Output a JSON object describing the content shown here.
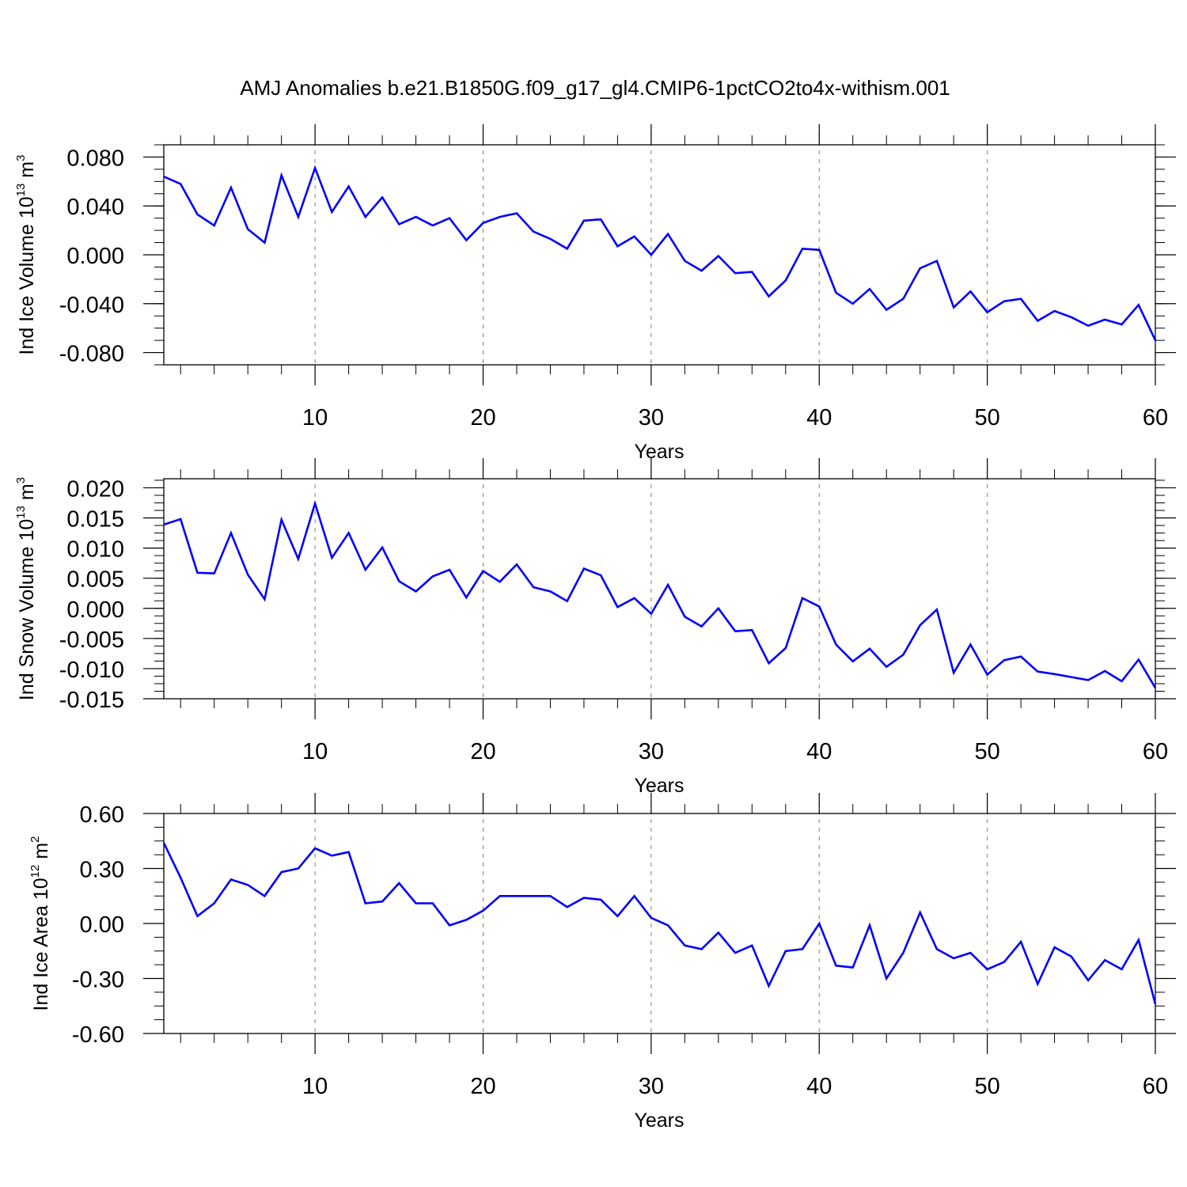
{
  "title": "AMJ Anomalies b.e21.B1850G.f09_g17_gl4.CMIP6-1pctCO2to4x-withism.001",
  "colors": {
    "line": "#0000ff",
    "axis": "#000000",
    "grid": "#808080"
  },
  "chart_data": [
    {
      "type": "line",
      "title": "AMJ Anomalies b.e21.B1850G.f09_g17_gl4.CMIP6-1pctCO2to4x-withism.001",
      "ylabel": {
        "text": "Ind Ice Volume 10",
        "exp": "13",
        "unit": " m",
        "unit_exp": "3"
      },
      "xlabel": "Years",
      "xlim": [
        1,
        60
      ],
      "ylim": [
        -0.09,
        0.09
      ],
      "xticks": [
        "10",
        "20",
        "30",
        "40",
        "50",
        "60"
      ],
      "yticks": [
        "0.080",
        "0.040",
        "0.000",
        "-0.040",
        "-0.080"
      ],
      "ytick_values": [
        0.08,
        0.04,
        0.0,
        -0.04,
        -0.08
      ],
      "grid": "vertical dashed at major x ticks",
      "x": [
        1,
        2,
        3,
        4,
        5,
        6,
        7,
        8,
        9,
        10,
        11,
        12,
        13,
        14,
        15,
        16,
        17,
        18,
        19,
        20,
        21,
        22,
        23,
        24,
        25,
        26,
        27,
        28,
        29,
        30,
        31,
        32,
        33,
        34,
        35,
        36,
        37,
        38,
        39,
        40,
        41,
        42,
        43,
        44,
        45,
        46,
        47,
        48,
        49,
        50,
        51,
        52,
        53,
        54,
        55,
        56,
        57,
        58,
        59,
        60
      ],
      "values": [
        0.064,
        0.058,
        0.033,
        0.024,
        0.055,
        0.021,
        0.01,
        0.065,
        0.031,
        0.071,
        0.035,
        0.056,
        0.031,
        0.047,
        0.025,
        0.031,
        0.024,
        0.03,
        0.012,
        0.026,
        0.031,
        0.034,
        0.019,
        0.013,
        0.005,
        0.028,
        0.029,
        0.007,
        0.015,
        0.0,
        0.017,
        -0.005,
        -0.013,
        -0.001,
        -0.015,
        -0.014,
        -0.034,
        -0.021,
        0.005,
        0.004,
        -0.031,
        -0.04,
        -0.028,
        -0.045,
        -0.036,
        -0.011,
        -0.005,
        -0.043,
        -0.03,
        -0.047,
        -0.038,
        -0.036,
        -0.054,
        -0.046,
        -0.051,
        -0.058,
        -0.053,
        -0.057,
        -0.041,
        -0.07
      ]
    },
    {
      "type": "line",
      "ylabel": {
        "text": "Ind Snow Volume 10",
        "exp": "13",
        "unit": " m",
        "unit_exp": "3"
      },
      "xlabel": "Years",
      "xlim": [
        1,
        60
      ],
      "ylim": [
        -0.015,
        0.0215
      ],
      "xticks": [
        "10",
        "20",
        "30",
        "40",
        "50",
        "60"
      ],
      "yticks": [
        "0.020",
        "0.015",
        "0.010",
        "0.005",
        "0.000",
        "-0.005",
        "-0.010",
        "-0.015"
      ],
      "ytick_values": [
        0.02,
        0.015,
        0.01,
        0.005,
        0.0,
        -0.005,
        -0.01,
        -0.015
      ],
      "grid": "vertical dashed at major x ticks",
      "x": [
        1,
        2,
        3,
        4,
        5,
        6,
        7,
        8,
        9,
        10,
        11,
        12,
        13,
        14,
        15,
        16,
        17,
        18,
        19,
        20,
        21,
        22,
        23,
        24,
        25,
        26,
        27,
        28,
        29,
        30,
        31,
        32,
        33,
        34,
        35,
        36,
        37,
        38,
        39,
        40,
        41,
        42,
        43,
        44,
        45,
        46,
        47,
        48,
        49,
        50,
        51,
        52,
        53,
        54,
        55,
        56,
        57,
        58,
        59,
        60
      ],
      "values": [
        0.0139,
        0.0148,
        0.0059,
        0.0058,
        0.0125,
        0.0056,
        0.0015,
        0.0147,
        0.0082,
        0.0174,
        0.0084,
        0.0125,
        0.0064,
        0.0101,
        0.0045,
        0.0028,
        0.0053,
        0.0064,
        0.0018,
        0.0062,
        0.0044,
        0.0073,
        0.0035,
        0.0028,
        0.0012,
        0.0066,
        0.0055,
        0.0002,
        0.0017,
        -0.0009,
        0.0039,
        -0.0014,
        -0.003,
        0.0,
        -0.0038,
        -0.0036,
        -0.0091,
        -0.0066,
        0.0017,
        0.0003,
        -0.006,
        -0.0088,
        -0.0067,
        -0.0097,
        -0.0077,
        -0.0028,
        -0.0002,
        -0.0107,
        -0.006,
        -0.011,
        -0.0086,
        -0.008,
        -0.0105,
        -0.0109,
        -0.0114,
        -0.0119,
        -0.0104,
        -0.0121,
        -0.0085,
        -0.0132
      ]
    },
    {
      "type": "line",
      "ylabel": {
        "text": "Ind Ice Area 10",
        "exp": "12",
        "unit": " m",
        "unit_exp": "2"
      },
      "xlabel": "Years",
      "xlim": [
        1,
        60
      ],
      "ylim": [
        -0.6,
        0.6
      ],
      "xticks": [
        "10",
        "20",
        "30",
        "40",
        "50",
        "60"
      ],
      "yticks": [
        "0.60",
        "0.30",
        "0.00",
        "-0.30",
        "-0.60"
      ],
      "ytick_values": [
        0.6,
        0.3,
        0.0,
        -0.3,
        -0.6
      ],
      "grid": "vertical dashed at major x ticks",
      "x": [
        1,
        2,
        3,
        4,
        5,
        6,
        7,
        8,
        9,
        10,
        11,
        12,
        13,
        14,
        15,
        16,
        17,
        18,
        19,
        20,
        21,
        22,
        23,
        24,
        25,
        26,
        27,
        28,
        29,
        30,
        31,
        32,
        33,
        34,
        35,
        36,
        37,
        38,
        39,
        40,
        41,
        42,
        43,
        44,
        45,
        46,
        47,
        48,
        49,
        50,
        51,
        52,
        53,
        54,
        55,
        56,
        57,
        58,
        59,
        60
      ],
      "values": [
        0.44,
        0.25,
        0.04,
        0.11,
        0.24,
        0.21,
        0.15,
        0.28,
        0.3,
        0.41,
        0.37,
        0.39,
        0.11,
        0.12,
        0.22,
        0.11,
        0.11,
        -0.01,
        0.02,
        0.07,
        0.15,
        0.15,
        0.15,
        0.15,
        0.09,
        0.14,
        0.13,
        0.04,
        0.15,
        0.03,
        -0.01,
        -0.12,
        -0.14,
        -0.05,
        -0.16,
        -0.12,
        -0.34,
        -0.15,
        -0.14,
        0.0,
        -0.23,
        -0.24,
        -0.01,
        -0.3,
        -0.16,
        0.06,
        -0.14,
        -0.19,
        -0.16,
        -0.25,
        -0.21,
        -0.1,
        -0.33,
        -0.13,
        -0.18,
        -0.31,
        -0.2,
        -0.25,
        -0.09,
        -0.44
      ]
    }
  ]
}
